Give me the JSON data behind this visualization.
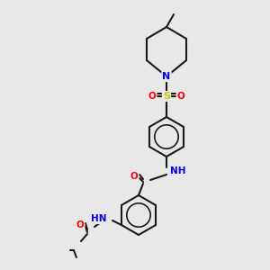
{
  "bg_color": "#e8e8e8",
  "figsize": [
    3.0,
    3.0
  ],
  "dpi": 100,
  "bond_color": "#1a1a1a",
  "bond_lw": 1.5,
  "atom_colors": {
    "N": "#0000ff",
    "O": "#ff0000",
    "S": "#cccc00",
    "C": "#1a1a1a",
    "H": "#1a1a1a"
  },
  "font_size": 7.5
}
